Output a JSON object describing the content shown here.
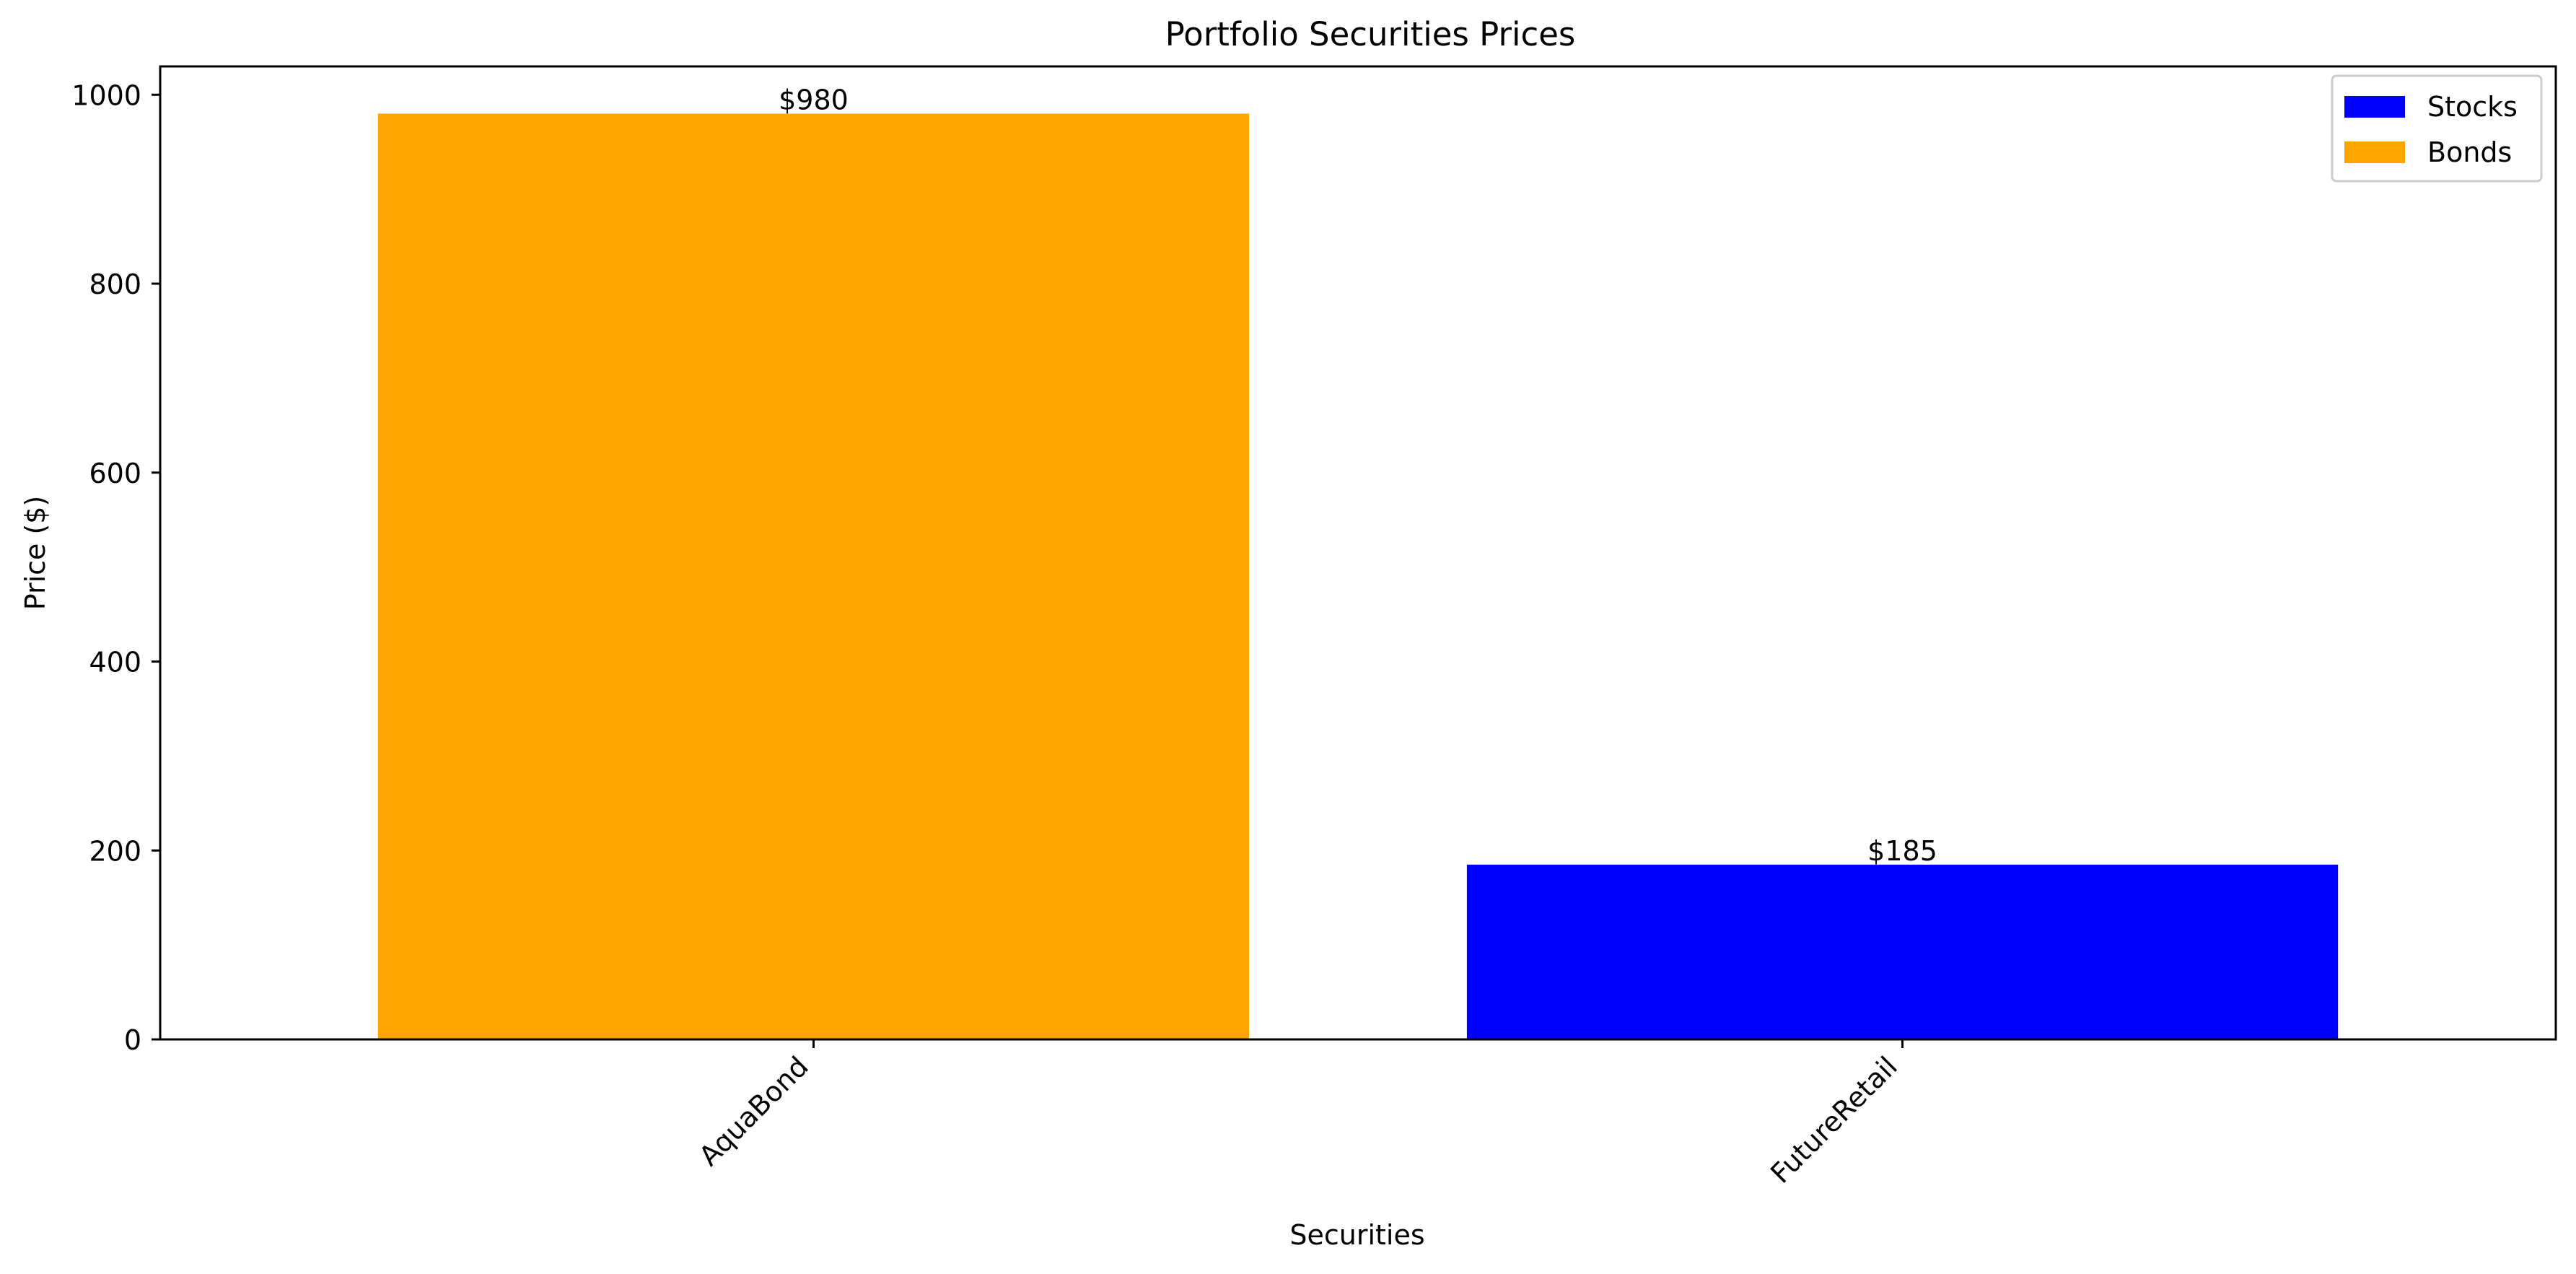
{
  "chart_data": {
    "type": "bar",
    "title": "Portfolio Securities Prices",
    "xlabel": "Securities",
    "ylabel": "Price ($)",
    "categories": [
      "AquaBond",
      "FutureRetail"
    ],
    "values": [
      980,
      185
    ],
    "value_labels": [
      "$980",
      "$185"
    ],
    "bar_series": [
      "Bonds",
      "Stocks"
    ],
    "ylim": [
      0,
      1030
    ],
    "yticks": [
      0,
      200,
      400,
      600,
      800,
      1000
    ],
    "ytick_labels": [
      "0",
      "200",
      "400",
      "600",
      "800",
      "1000"
    ],
    "grid": false,
    "legend_position": "top-right",
    "legend": [
      {
        "name": "Stocks",
        "color": "#0000ff"
      },
      {
        "name": "Bonds",
        "color": "#ffa500"
      }
    ]
  }
}
